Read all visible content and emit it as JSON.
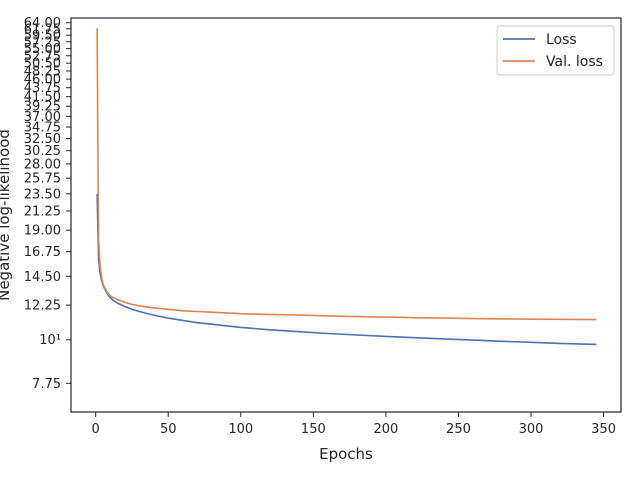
{
  "chart_data": {
    "type": "line",
    "title": "",
    "xlabel": "Epochs",
    "ylabel": "Negative log-likelihood",
    "xlim": [
      -17,
      362
    ],
    "ylim": [
      6.55,
      65.8
    ],
    "yscale": "log",
    "grid": false,
    "legend_position": "top-right",
    "x_ticks": [
      0,
      50,
      100,
      150,
      200,
      250,
      300,
      350
    ],
    "x_tick_labels": [
      "0",
      "50",
      "100",
      "150",
      "200",
      "250",
      "300",
      "350"
    ],
    "y_ticks": [
      7.75,
      10,
      12.25,
      14.5,
      16.75,
      19.0,
      21.25,
      23.5,
      25.75,
      28.0,
      30.25,
      32.5,
      34.75,
      37.0,
      39.25,
      41.5,
      43.75,
      46.0,
      48.25,
      50.5,
      52.75,
      55.0,
      57.25,
      59.5,
      61.75,
      64.0
    ],
    "y_tick_labels": [
      "7.75",
      "10¹",
      "12.25",
      "14.50",
      "16.75",
      "19.00",
      "21.25",
      "23.50",
      "25.75",
      "28.00",
      "30.25",
      "32.50",
      "34.75",
      "37.00",
      "39.25",
      "41.50",
      "43.75",
      "46.00",
      "48.25",
      "50.50",
      "52.75",
      "55.00",
      "57.25",
      "59.50",
      "61.75",
      "64.00"
    ],
    "series": [
      {
        "name": "Loss",
        "color": "#4c72b0",
        "x": [
          1,
          2,
          3,
          4,
          5,
          6,
          8,
          10,
          12,
          15,
          20,
          25,
          30,
          40,
          50,
          60,
          70,
          80,
          90,
          100,
          120,
          140,
          160,
          180,
          200,
          220,
          240,
          260,
          280,
          300,
          320,
          345
        ],
        "y": [
          23.5,
          16.0,
          14.8,
          14.2,
          13.8,
          13.5,
          13.1,
          12.8,
          12.6,
          12.4,
          12.15,
          11.95,
          11.8,
          11.55,
          11.35,
          11.2,
          11.05,
          10.95,
          10.85,
          10.75,
          10.6,
          10.48,
          10.37,
          10.28,
          10.2,
          10.12,
          10.05,
          9.98,
          9.91,
          9.85,
          9.79,
          9.73
        ]
      },
      {
        "name": "Val. loss",
        "color": "#dd8452",
        "x": [
          1,
          2,
          3,
          4,
          5,
          6,
          8,
          10,
          12,
          15,
          20,
          25,
          30,
          40,
          50,
          60,
          70,
          80,
          90,
          100,
          120,
          140,
          160,
          180,
          200,
          220,
          240,
          260,
          280,
          300,
          320,
          345
        ],
        "y": [
          62.0,
          18.0,
          15.5,
          14.5,
          13.9,
          13.6,
          13.2,
          12.95,
          12.8,
          12.65,
          12.45,
          12.3,
          12.2,
          12.05,
          11.95,
          11.85,
          11.8,
          11.75,
          11.7,
          11.65,
          11.6,
          11.55,
          11.5,
          11.45,
          11.42,
          11.38,
          11.35,
          11.32,
          11.3,
          11.28,
          11.27,
          11.25
        ]
      }
    ]
  }
}
